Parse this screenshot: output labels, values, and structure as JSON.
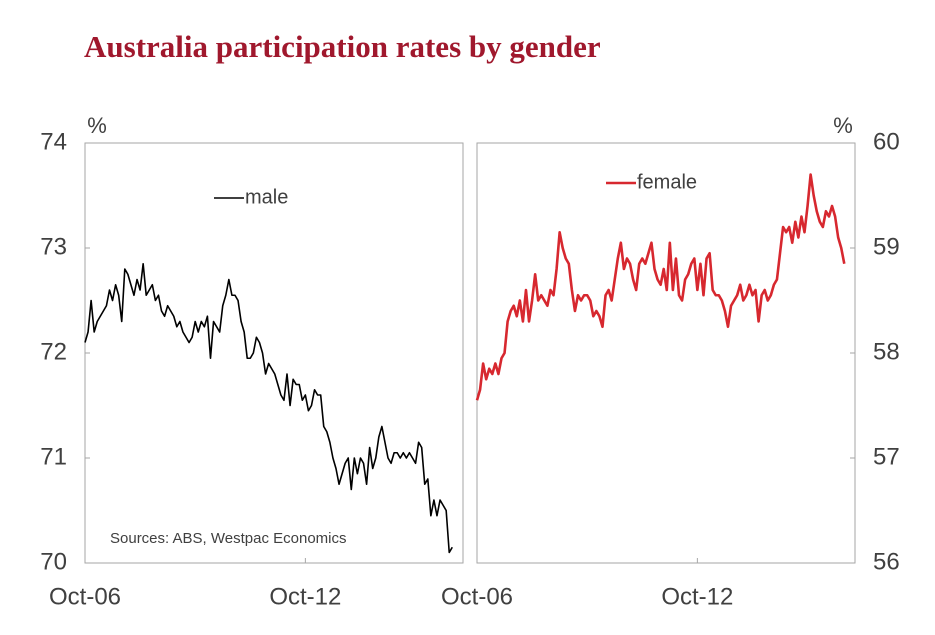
{
  "title": "Australia participation rates by gender",
  "chart_data": [
    {
      "type": "line",
      "y_axis_side": "left",
      "y_axis_label": "%",
      "legend": "upper center",
      "note": "Sources: ABS, Westpac Economics",
      "x": [
        "Oct-06",
        "Nov-06",
        "Dec-06",
        "Jan-07",
        "Feb-07",
        "Mar-07",
        "Apr-07",
        "May-07",
        "Jun-07",
        "Jul-07",
        "Aug-07",
        "Sep-07",
        "Oct-07",
        "Nov-07",
        "Dec-07",
        "Jan-08",
        "Feb-08",
        "Mar-08",
        "Apr-08",
        "May-08",
        "Jun-08",
        "Jul-08",
        "Aug-08",
        "Sep-08",
        "Oct-08",
        "Nov-08",
        "Dec-08",
        "Jan-09",
        "Feb-09",
        "Mar-09",
        "Apr-09",
        "May-09",
        "Jun-09",
        "Jul-09",
        "Aug-09",
        "Sep-09",
        "Oct-09",
        "Nov-09",
        "Dec-09",
        "Jan-10",
        "Feb-10",
        "Mar-10",
        "Apr-10",
        "May-10",
        "Jun-10",
        "Jul-10",
        "Aug-10",
        "Sep-10",
        "Oct-10",
        "Nov-10",
        "Dec-10",
        "Jan-11",
        "Feb-11",
        "Mar-11",
        "Apr-11",
        "May-11",
        "Jun-11",
        "Jul-11",
        "Aug-11",
        "Sep-11",
        "Oct-11",
        "Nov-11",
        "Dec-11",
        "Jan-12",
        "Feb-12",
        "Mar-12",
        "Apr-12",
        "May-12",
        "Jun-12",
        "Jul-12",
        "Aug-12",
        "Sep-12",
        "Oct-12",
        "Nov-12",
        "Dec-12",
        "Jan-13",
        "Feb-13",
        "Mar-13",
        "Apr-13",
        "May-13",
        "Jun-13",
        "Jul-13",
        "Aug-13",
        "Sep-13",
        "Oct-13",
        "Nov-13",
        "Dec-13",
        "Jan-14",
        "Feb-14",
        "Mar-14",
        "Apr-14",
        "May-14",
        "Jun-14",
        "Jul-14",
        "Aug-14",
        "Sep-14",
        "Oct-14",
        "Nov-14",
        "Dec-14",
        "Jan-15",
        "Feb-15",
        "Mar-15",
        "Apr-15",
        "May-15",
        "Jun-15",
        "Jul-15",
        "Aug-15",
        "Sep-15",
        "Oct-15",
        "Nov-15",
        "Dec-15",
        "Jan-16",
        "Feb-16",
        "Mar-16",
        "Apr-16",
        "May-16",
        "Jun-16",
        "Jul-16",
        "Aug-16",
        "Sep-16",
        "Oct-16"
      ],
      "xticks": [
        "Oct-06",
        "Oct-12"
      ],
      "ylim": [
        70,
        74
      ],
      "yticks": [
        70,
        71,
        72,
        73,
        74
      ],
      "series": [
        {
          "name": "male",
          "color": "#000000",
          "values": [
            72.1,
            72.2,
            72.5,
            72.2,
            72.3,
            72.35,
            72.4,
            72.45,
            72.6,
            72.5,
            72.65,
            72.55,
            72.3,
            72.8,
            72.75,
            72.65,
            72.55,
            72.7,
            72.6,
            72.85,
            72.55,
            72.6,
            72.65,
            72.5,
            72.55,
            72.4,
            72.35,
            72.45,
            72.4,
            72.35,
            72.25,
            72.3,
            72.2,
            72.15,
            72.1,
            72.15,
            72.3,
            72.2,
            72.3,
            72.25,
            72.35,
            71.95,
            72.3,
            72.25,
            72.2,
            72.45,
            72.55,
            72.7,
            72.55,
            72.55,
            72.5,
            72.3,
            72.2,
            71.95,
            71.95,
            72.0,
            72.15,
            72.1,
            72.0,
            71.8,
            71.9,
            71.85,
            71.8,
            71.7,
            71.6,
            71.55,
            71.8,
            71.5,
            71.75,
            71.7,
            71.7,
            71.55,
            71.6,
            71.45,
            71.5,
            71.65,
            71.6,
            71.6,
            71.3,
            71.25,
            71.15,
            71.0,
            70.9,
            70.75,
            70.85,
            70.95,
            71.0,
            70.7,
            71.0,
            70.85,
            71.0,
            70.95,
            70.75,
            71.1,
            70.9,
            71.0,
            71.2,
            71.3,
            71.15,
            71.0,
            70.95,
            71.05,
            71.05,
            71.0,
            71.05,
            71.0,
            71.05,
            71.0,
            70.95,
            71.15,
            71.1,
            70.75,
            70.8,
            70.45,
            70.6,
            70.45,
            70.6,
            70.55,
            70.5,
            70.1,
            70.15
          ]
        }
      ]
    },
    {
      "type": "line",
      "y_axis_side": "right",
      "y_axis_label": "%",
      "legend": "upper center",
      "x": [
        "Oct-06",
        "Nov-06",
        "Dec-06",
        "Jan-07",
        "Feb-07",
        "Mar-07",
        "Apr-07",
        "May-07",
        "Jun-07",
        "Jul-07",
        "Aug-07",
        "Sep-07",
        "Oct-07",
        "Nov-07",
        "Dec-07",
        "Jan-08",
        "Feb-08",
        "Mar-08",
        "Apr-08",
        "May-08",
        "Jun-08",
        "Jul-08",
        "Aug-08",
        "Sep-08",
        "Oct-08",
        "Nov-08",
        "Dec-08",
        "Jan-09",
        "Feb-09",
        "Mar-09",
        "Apr-09",
        "May-09",
        "Jun-09",
        "Jul-09",
        "Aug-09",
        "Sep-09",
        "Oct-09",
        "Nov-09",
        "Dec-09",
        "Jan-10",
        "Feb-10",
        "Mar-10",
        "Apr-10",
        "May-10",
        "Jun-10",
        "Jul-10",
        "Aug-10",
        "Sep-10",
        "Oct-10",
        "Nov-10",
        "Dec-10",
        "Jan-11",
        "Feb-11",
        "Mar-11",
        "Apr-11",
        "May-11",
        "Jun-11",
        "Jul-11",
        "Aug-11",
        "Sep-11",
        "Oct-11",
        "Nov-11",
        "Dec-11",
        "Jan-12",
        "Feb-12",
        "Mar-12",
        "Apr-12",
        "May-12",
        "Jun-12",
        "Jul-12",
        "Aug-12",
        "Sep-12",
        "Oct-12",
        "Nov-12",
        "Dec-12",
        "Jan-13",
        "Feb-13",
        "Mar-13",
        "Apr-13",
        "May-13",
        "Jun-13",
        "Jul-13",
        "Aug-13",
        "Sep-13",
        "Oct-13",
        "Nov-13",
        "Dec-13",
        "Jan-14",
        "Feb-14",
        "Mar-14",
        "Apr-14",
        "May-14",
        "Jun-14",
        "Jul-14",
        "Aug-14",
        "Sep-14",
        "Oct-14",
        "Nov-14",
        "Dec-14",
        "Jan-15",
        "Feb-15",
        "Mar-15",
        "Apr-15",
        "May-15",
        "Jun-15",
        "Jul-15",
        "Aug-15",
        "Sep-15",
        "Oct-15",
        "Nov-15",
        "Dec-15",
        "Jan-16",
        "Feb-16",
        "Mar-16",
        "Apr-16",
        "May-16",
        "Jun-16",
        "Jul-16",
        "Aug-16",
        "Sep-16",
        "Oct-16"
      ],
      "xticks": [
        "Oct-06",
        "Oct-12"
      ],
      "ylim": [
        56,
        60
      ],
      "yticks": [
        56,
        57,
        58,
        59,
        60
      ],
      "series": [
        {
          "name": "female",
          "color": "#d7282f",
          "values": [
            57.55,
            57.65,
            57.9,
            57.75,
            57.85,
            57.8,
            57.9,
            57.8,
            57.95,
            58.0,
            58.3,
            58.4,
            58.45,
            58.35,
            58.5,
            58.3,
            58.6,
            58.3,
            58.5,
            58.75,
            58.5,
            58.55,
            58.5,
            58.45,
            58.6,
            58.55,
            58.8,
            59.15,
            59.0,
            58.9,
            58.85,
            58.6,
            58.4,
            58.55,
            58.5,
            58.55,
            58.55,
            58.5,
            58.35,
            58.4,
            58.35,
            58.25,
            58.55,
            58.6,
            58.5,
            58.7,
            58.9,
            59.05,
            58.8,
            58.9,
            58.85,
            58.7,
            58.6,
            58.85,
            58.9,
            58.85,
            58.95,
            59.05,
            58.8,
            58.7,
            58.65,
            58.8,
            58.6,
            59.05,
            58.6,
            58.9,
            58.55,
            58.5,
            58.7,
            58.75,
            58.85,
            58.9,
            58.6,
            58.85,
            58.55,
            58.9,
            58.95,
            58.6,
            58.55,
            58.55,
            58.5,
            58.4,
            58.25,
            58.45,
            58.5,
            58.55,
            58.65,
            58.5,
            58.55,
            58.65,
            58.55,
            58.6,
            58.3,
            58.55,
            58.6,
            58.5,
            58.55,
            58.65,
            58.7,
            58.95,
            59.2,
            59.15,
            59.2,
            59.05,
            59.25,
            59.1,
            59.3,
            59.15,
            59.4,
            59.7,
            59.5,
            59.35,
            59.25,
            59.2,
            59.35,
            59.3,
            59.4,
            59.3,
            59.1,
            59.0,
            58.85
          ]
        }
      ]
    }
  ]
}
